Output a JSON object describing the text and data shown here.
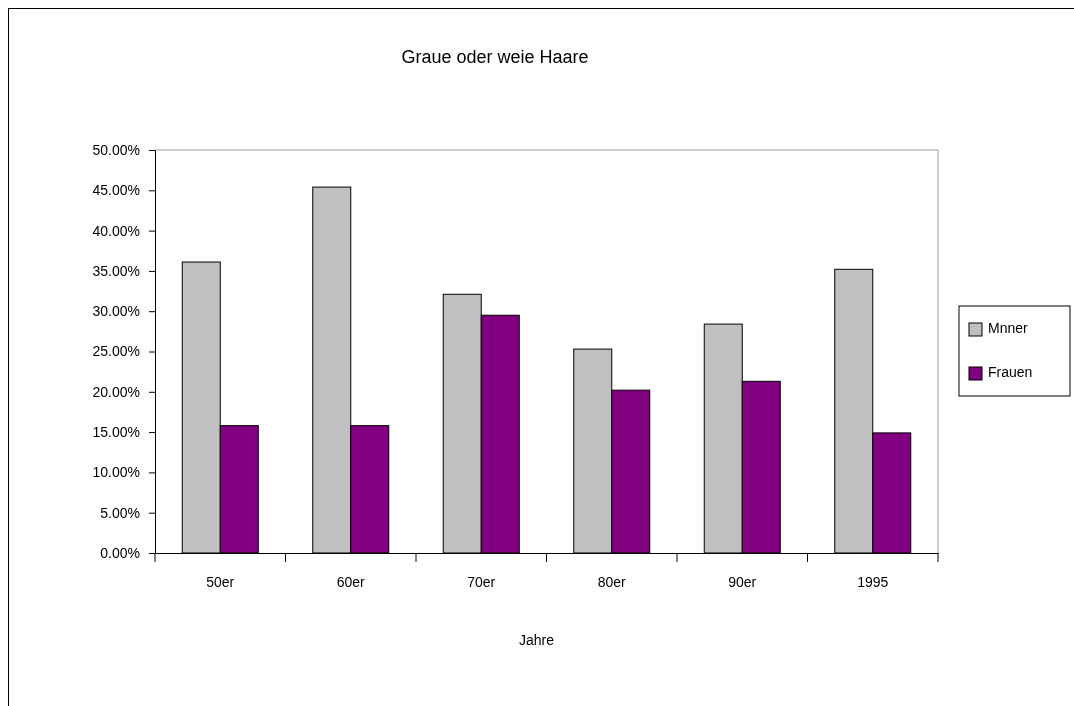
{
  "chart_data": {
    "type": "bar",
    "title": "Graue oder weie Haare",
    "xlabel": "Jahre",
    "categories": [
      "50er",
      "60er",
      "70er",
      "80er",
      "90er",
      "1995"
    ],
    "series": [
      {
        "name": "Mnner",
        "color": "#c0c0c0",
        "values": [
          36.1,
          45.4,
          32.1,
          25.3,
          28.4,
          35.2
        ]
      },
      {
        "name": "Frauen",
        "color": "#800080",
        "values": [
          15.8,
          15.8,
          29.5,
          20.2,
          21.3,
          14.9
        ]
      }
    ],
    "ylim": [
      0,
      50
    ],
    "yticks": [
      {
        "value": 0,
        "label": "0.00%"
      },
      {
        "value": 5,
        "label": "5.00%"
      },
      {
        "value": 10,
        "label": "10.00%"
      },
      {
        "value": 15,
        "label": "15.00%"
      },
      {
        "value": 20,
        "label": "20.00%"
      },
      {
        "value": 25,
        "label": "25.00%"
      },
      {
        "value": 30,
        "label": "30.00%"
      },
      {
        "value": 35,
        "label": "35.00%"
      },
      {
        "value": 40,
        "label": "40.00%"
      },
      {
        "value": 45,
        "label": "45.00%"
      },
      {
        "value": 50,
        "label": "50.00%"
      }
    ],
    "legend": "right",
    "grid": false
  }
}
